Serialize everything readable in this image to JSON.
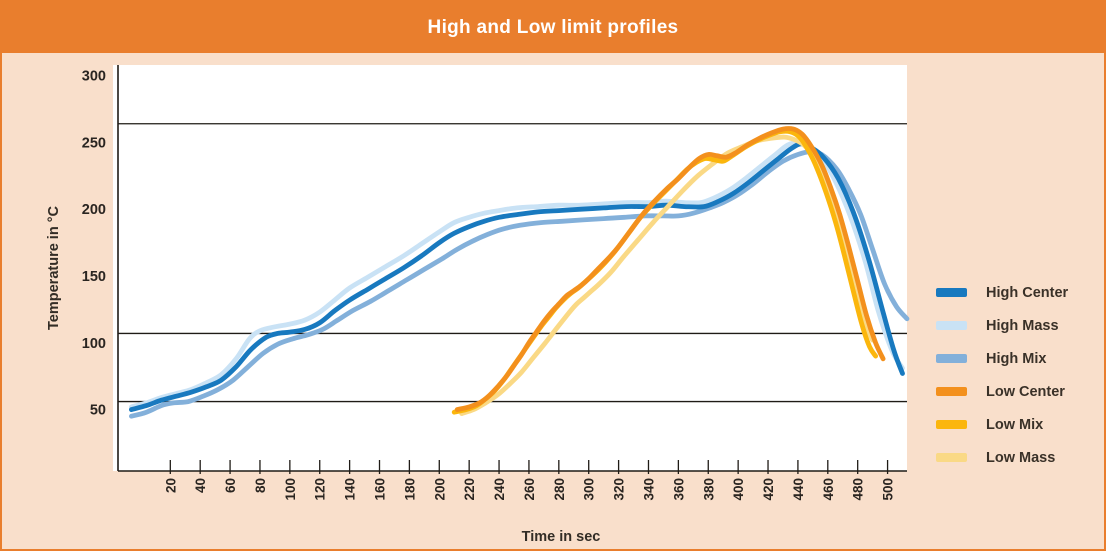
{
  "header": {
    "title": "High and Low limit profiles"
  },
  "colors": {
    "frame_border": "#E97E2D",
    "header_bg": "#E97E2D",
    "canvas_bg": "#F9DFCB",
    "plot_bg": "#FFFFFF",
    "axis_line": "#1F1B16",
    "reference_line": "#1F1B16",
    "tick_text": "#2A2521",
    "axis_label_text": "#332D26",
    "legend_text": "#3A3128",
    "title_text": "#FFFFFF"
  },
  "chart_data": {
    "type": "line",
    "title": "High and Low limit profiles",
    "xlabel": "Time in sec",
    "ylabel": "Temperature in °C",
    "xlim": [
      -15,
      513
    ],
    "ylim": [
      4,
      308
    ],
    "x_ticks": [
      20,
      40,
      60,
      80,
      100,
      120,
      140,
      160,
      180,
      200,
      220,
      240,
      260,
      280,
      300,
      320,
      340,
      360,
      380,
      400,
      420,
      440,
      460,
      480,
      500
    ],
    "y_ticks": [
      50,
      100,
      150,
      200,
      250,
      300
    ],
    "grid": "off",
    "legend_position": "right",
    "reference_lines_c": [
      264,
      107,
      56
    ],
    "series": [
      {
        "name": "High Center",
        "color": "#1879BF",
        "points": [
          [
            -6,
            50
          ],
          [
            4,
            53
          ],
          [
            14,
            57
          ],
          [
            24,
            60
          ],
          [
            34,
            63
          ],
          [
            44,
            67
          ],
          [
            54,
            72
          ],
          [
            64,
            82
          ],
          [
            74,
            95
          ],
          [
            84,
            104
          ],
          [
            92,
            107
          ],
          [
            100,
            108
          ],
          [
            110,
            110
          ],
          [
            120,
            115
          ],
          [
            130,
            124
          ],
          [
            140,
            132
          ],
          [
            152,
            140
          ],
          [
            164,
            148
          ],
          [
            176,
            156
          ],
          [
            188,
            165
          ],
          [
            200,
            175
          ],
          [
            210,
            182
          ],
          [
            220,
            187
          ],
          [
            230,
            191
          ],
          [
            240,
            194
          ],
          [
            252,
            196
          ],
          [
            266,
            198
          ],
          [
            280,
            199
          ],
          [
            295,
            200
          ],
          [
            310,
            201
          ],
          [
            325,
            202
          ],
          [
            340,
            202
          ],
          [
            352,
            203
          ],
          [
            364,
            202
          ],
          [
            377,
            202
          ],
          [
            387,
            206
          ],
          [
            397,
            212
          ],
          [
            407,
            220
          ],
          [
            417,
            229
          ],
          [
            427,
            238
          ],
          [
            435,
            245
          ],
          [
            442,
            249
          ],
          [
            449,
            246
          ],
          [
            457,
            239
          ],
          [
            467,
            223
          ],
          [
            477,
            198
          ],
          [
            487,
            164
          ],
          [
            496,
            127
          ],
          [
            504,
            95
          ],
          [
            510,
            77
          ]
        ]
      },
      {
        "name": "High Mass",
        "color": "#C9E2F5",
        "points": [
          [
            -6,
            52
          ],
          [
            4,
            55
          ],
          [
            14,
            59
          ],
          [
            24,
            62
          ],
          [
            34,
            65
          ],
          [
            44,
            70
          ],
          [
            54,
            76
          ],
          [
            64,
            88
          ],
          [
            73,
            103
          ],
          [
            80,
            109
          ],
          [
            90,
            112
          ],
          [
            100,
            114
          ],
          [
            110,
            117
          ],
          [
            120,
            123
          ],
          [
            130,
            132
          ],
          [
            140,
            141
          ],
          [
            152,
            149
          ],
          [
            164,
            157
          ],
          [
            176,
            165
          ],
          [
            188,
            174
          ],
          [
            200,
            183
          ],
          [
            210,
            190
          ],
          [
            220,
            194
          ],
          [
            230,
            197
          ],
          [
            240,
            199
          ],
          [
            252,
            201
          ],
          [
            266,
            202
          ],
          [
            280,
            203
          ],
          [
            295,
            203
          ],
          [
            310,
            204
          ],
          [
            325,
            205
          ],
          [
            340,
            205
          ],
          [
            352,
            206
          ],
          [
            364,
            205
          ],
          [
            375,
            205
          ],
          [
            385,
            209
          ],
          [
            395,
            215
          ],
          [
            405,
            223
          ],
          [
            415,
            232
          ],
          [
            425,
            241
          ],
          [
            433,
            248
          ],
          [
            440,
            250
          ],
          [
            446,
            248
          ],
          [
            455,
            240
          ],
          [
            465,
            221
          ],
          [
            475,
            195
          ],
          [
            485,
            161
          ],
          [
            494,
            123
          ],
          [
            503,
            94
          ],
          [
            510,
            81
          ]
        ]
      },
      {
        "name": "High Mix",
        "color": "#83B0DA",
        "points": [
          [
            -6,
            45
          ],
          [
            4,
            48
          ],
          [
            14,
            53
          ],
          [
            22,
            55
          ],
          [
            32,
            56
          ],
          [
            42,
            60
          ],
          [
            52,
            65
          ],
          [
            62,
            72
          ],
          [
            72,
            82
          ],
          [
            82,
            92
          ],
          [
            92,
            99
          ],
          [
            102,
            103
          ],
          [
            112,
            106
          ],
          [
            122,
            110
          ],
          [
            132,
            117
          ],
          [
            142,
            124
          ],
          [
            154,
            131
          ],
          [
            166,
            139
          ],
          [
            178,
            147
          ],
          [
            190,
            155
          ],
          [
            202,
            163
          ],
          [
            212,
            170
          ],
          [
            222,
            176
          ],
          [
            232,
            181
          ],
          [
            242,
            185
          ],
          [
            254,
            188
          ],
          [
            268,
            190
          ],
          [
            282,
            191
          ],
          [
            296,
            192
          ],
          [
            310,
            193
          ],
          [
            324,
            194
          ],
          [
            338,
            195
          ],
          [
            350,
            195
          ],
          [
            360,
            195
          ],
          [
            370,
            197
          ],
          [
            381,
            201
          ],
          [
            390,
            205
          ],
          [
            400,
            211
          ],
          [
            410,
            219
          ],
          [
            420,
            228
          ],
          [
            430,
            236
          ],
          [
            440,
            241
          ],
          [
            448,
            243
          ],
          [
            456,
            241
          ],
          [
            466,
            230
          ],
          [
            474,
            215
          ],
          [
            482,
            196
          ],
          [
            490,
            170
          ],
          [
            498,
            144
          ],
          [
            506,
            127
          ],
          [
            513,
            118
          ]
        ]
      },
      {
        "name": "Low Center",
        "color": "#F3901D",
        "points": [
          [
            212,
            50
          ],
          [
            220,
            52
          ],
          [
            227,
            55
          ],
          [
            233,
            60
          ],
          [
            239,
            67
          ],
          [
            245,
            75
          ],
          [
            250,
            83
          ],
          [
            255,
            91
          ],
          [
            260,
            100
          ],
          [
            265,
            108
          ],
          [
            270,
            116
          ],
          [
            275,
            123
          ],
          [
            280,
            129
          ],
          [
            285,
            135
          ],
          [
            290,
            139
          ],
          [
            295,
            143
          ],
          [
            300,
            148
          ],
          [
            306,
            155
          ],
          [
            313,
            163
          ],
          [
            320,
            172
          ],
          [
            328,
            184
          ],
          [
            336,
            196
          ],
          [
            344,
            206
          ],
          [
            352,
            215
          ],
          [
            360,
            223
          ],
          [
            368,
            232
          ],
          [
            374,
            238
          ],
          [
            380,
            241
          ],
          [
            386,
            240
          ],
          [
            392,
            239
          ],
          [
            398,
            242
          ],
          [
            406,
            248
          ],
          [
            414,
            253
          ],
          [
            422,
            257
          ],
          [
            430,
            260
          ],
          [
            437,
            260
          ],
          [
            443,
            256
          ],
          [
            449,
            247
          ],
          [
            456,
            233
          ],
          [
            462,
            216
          ],
          [
            468,
            196
          ],
          [
            474,
            172
          ],
          [
            480,
            146
          ],
          [
            486,
            120
          ],
          [
            492,
            100
          ],
          [
            497,
            88
          ]
        ]
      },
      {
        "name": "Low Mix",
        "color": "#FBB60D",
        "points": [
          [
            210,
            48
          ],
          [
            218,
            50
          ],
          [
            225,
            53
          ],
          [
            231,
            58
          ],
          [
            237,
            64
          ],
          [
            243,
            72
          ],
          [
            248,
            80
          ],
          [
            253,
            88
          ],
          [
            258,
            96
          ],
          [
            263,
            104
          ],
          [
            268,
            112
          ],
          [
            273,
            119
          ],
          [
            278,
            126
          ],
          [
            283,
            132
          ],
          [
            288,
            137
          ],
          [
            293,
            141
          ],
          [
            298,
            146
          ],
          [
            304,
            152
          ],
          [
            311,
            160
          ],
          [
            318,
            169
          ],
          [
            326,
            181
          ],
          [
            334,
            193
          ],
          [
            342,
            203
          ],
          [
            350,
            212
          ],
          [
            358,
            221
          ],
          [
            366,
            230
          ],
          [
            372,
            235
          ],
          [
            378,
            238
          ],
          [
            384,
            237
          ],
          [
            390,
            236
          ],
          [
            396,
            240
          ],
          [
            404,
            246
          ],
          [
            412,
            251
          ],
          [
            420,
            255
          ],
          [
            428,
            258
          ],
          [
            435,
            258
          ],
          [
            441,
            254
          ],
          [
            447,
            244
          ],
          [
            453,
            230
          ],
          [
            459,
            212
          ],
          [
            465,
            191
          ],
          [
            471,
            166
          ],
          [
            477,
            139
          ],
          [
            483,
            113
          ],
          [
            488,
            97
          ],
          [
            492,
            90
          ]
        ]
      },
      {
        "name": "Low Mass",
        "color": "#FAD985",
        "points": [
          [
            215,
            47
          ],
          [
            223,
            50
          ],
          [
            231,
            55
          ],
          [
            239,
            61
          ],
          [
            247,
            69
          ],
          [
            255,
            78
          ],
          [
            263,
            89
          ],
          [
            271,
            100
          ],
          [
            278,
            110
          ],
          [
            285,
            120
          ],
          [
            291,
            128
          ],
          [
            296,
            133
          ],
          [
            301,
            138
          ],
          [
            307,
            144
          ],
          [
            315,
            153
          ],
          [
            323,
            164
          ],
          [
            333,
            177
          ],
          [
            343,
            190
          ],
          [
            353,
            202
          ],
          [
            363,
            214
          ],
          [
            373,
            225
          ],
          [
            383,
            234
          ],
          [
            393,
            242
          ],
          [
            403,
            247
          ],
          [
            412,
            251
          ],
          [
            421,
            253
          ],
          [
            431,
            254
          ],
          [
            438,
            252
          ],
          [
            444,
            248
          ],
          [
            450,
            240
          ],
          [
            456,
            228
          ],
          [
            462,
            212
          ],
          [
            468,
            190
          ],
          [
            474,
            164
          ],
          [
            480,
            136
          ],
          [
            485,
            114
          ],
          [
            490,
            102
          ]
        ]
      }
    ]
  }
}
